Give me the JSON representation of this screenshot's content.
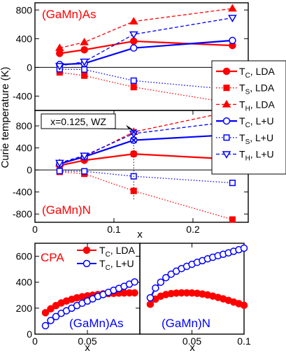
{
  "shared": {
    "ylabel": "Curie temperature (K)",
    "xlabel": "x"
  },
  "legend_top": [
    {
      "label_main": "T",
      "label_sub": "C",
      "label_rest": ", LDA",
      "color": "#ff0000",
      "marker": "circle-filled",
      "dash": "solid"
    },
    {
      "label_main": "T",
      "label_sub": "S",
      "label_rest": ", LDA",
      "color": "#ff0000",
      "marker": "square-filled",
      "dash": "dotted"
    },
    {
      "label_main": "T",
      "label_sub": "H",
      "label_rest": ", LDA",
      "color": "#ff0000",
      "marker": "triangle-filled",
      "dash": "dashed"
    },
    {
      "label_main": "T",
      "label_sub": "C",
      "label_rest": ", L+U",
      "color": "#0000ff",
      "marker": "circle-open",
      "dash": "solid"
    },
    {
      "label_main": "T",
      "label_sub": "S",
      "label_rest": ", L+U",
      "color": "#0000ff",
      "marker": "square-open",
      "dash": "dotted"
    },
    {
      "label_main": "T",
      "label_sub": "H",
      "label_rest": ", L+U",
      "color": "#0000ff",
      "marker": "triangle-open",
      "dash": "dashed"
    }
  ],
  "chart_data": [
    {
      "type": "line",
      "panel": "top",
      "title": "(GaMn)As",
      "xlim": [
        0,
        0.27
      ],
      "ylim": [
        -600,
        900
      ],
      "yticks": [
        -400,
        0,
        400,
        800
      ],
      "xticks": [],
      "zero_line": true,
      "series": [
        {
          "key": "TC_LDA",
          "color": "#ff0000",
          "marker": "circle-filled",
          "dash": "solid",
          "x": [
            0.03125,
            0.0625,
            0.125,
            0.25
          ],
          "y": [
            195,
            245,
            365,
            305
          ]
        },
        {
          "key": "TS_LDA",
          "color": "#ff0000",
          "marker": "square-filled",
          "dash": "dotted",
          "x": [
            0.03125,
            0.0625,
            0.125,
            0.25
          ],
          "y": [
            -70,
            -115,
            -275,
            -500
          ]
        },
        {
          "key": "TH_LDA",
          "color": "#ff0000",
          "marker": "triangle-filled",
          "dash": "dashed",
          "x": [
            0.03125,
            0.0625,
            0.125,
            0.25
          ],
          "y": [
            270,
            350,
            640,
            820
          ]
        },
        {
          "key": "TC_LU",
          "color": "#0000ff",
          "marker": "circle-open",
          "dash": "solid",
          "x": [
            0.03125,
            0.0625,
            0.125,
            0.25
          ],
          "y": [
            40,
            55,
            270,
            375
          ]
        },
        {
          "key": "TS_LU",
          "color": "#0000ff",
          "marker": "square-open",
          "dash": "dotted",
          "x": [
            0.03125,
            0.0625,
            0.125,
            0.25
          ],
          "y": [
            -25,
            -30,
            -185,
            -310
          ]
        },
        {
          "key": "TH_LU",
          "color": "#0000ff",
          "marker": "triangle-open",
          "dash": "dashed",
          "x": [
            0.03125,
            0.0625,
            0.125,
            0.25
          ],
          "y": [
            20,
            80,
            460,
            690
          ]
        }
      ]
    },
    {
      "type": "line",
      "panel": "middle",
      "title": "(GaMn)N",
      "xlim": [
        0,
        0.27
      ],
      "ylim": [
        -950,
        1080
      ],
      "yticks": [
        -800,
        -400,
        0,
        400,
        800
      ],
      "xticks": [
        0,
        0.1,
        0.2
      ],
      "zero_line": true,
      "annotation": "x=0.125, WZ",
      "wz_x": 0.125,
      "series": [
        {
          "key": "TC_LDA",
          "color": "#ff0000",
          "marker": "circle-filled",
          "dash": "solid",
          "x": [
            0.03125,
            0.0625,
            0.125,
            0.25
          ],
          "y": [
            80,
            175,
            290,
            195
          ]
        },
        {
          "key": "TS_LDA",
          "color": "#ff0000",
          "marker": "square-filled",
          "dash": "dotted",
          "x": [
            0.03125,
            0.0625,
            0.125,
            0.25
          ],
          "y": [
            -35,
            -70,
            -380,
            -900
          ]
        },
        {
          "key": "TH_LDA",
          "color": "#ff0000",
          "marker": "triangle-filled",
          "dash": "dashed",
          "x": [
            0.03125,
            0.0625,
            0.125,
            0.25
          ],
          "y": [
            120,
            240,
            690,
            1070
          ]
        },
        {
          "key": "TC_LU",
          "color": "#0000ff",
          "marker": "circle-open",
          "dash": "solid",
          "x": [
            0.03125,
            0.0625,
            0.125,
            0.25
          ],
          "y": [
            110,
            240,
            540,
            640
          ]
        },
        {
          "key": "TS_LU",
          "color": "#0000ff",
          "marker": "square-open",
          "dash": "dotted",
          "x": [
            0.03125,
            0.0625,
            0.125,
            0.25
          ],
          "y": [
            -20,
            -25,
            -115,
            -235
          ]
        },
        {
          "key": "TH_LU",
          "color": "#0000ff",
          "marker": "triangle-open",
          "dash": "dashed",
          "x": [
            0.03125,
            0.0625,
            0.125,
            0.25
          ],
          "y": [
            130,
            260,
            660,
            880
          ]
        }
      ],
      "wz_points": [
        {
          "color": "#ff0000",
          "y": -380
        },
        {
          "color": "#ff0000",
          "y": 290
        },
        {
          "color": "#0000ff",
          "y": 540
        },
        {
          "color": "#0000ff",
          "y": 690
        }
      ]
    },
    {
      "type": "line",
      "panel": "bottom-left",
      "title": "(GaMn)As",
      "corner_label": "CPA",
      "xlim": [
        0,
        0.1
      ],
      "ylim": [
        0,
        700
      ],
      "yticks": [
        0,
        200,
        400,
        600
      ],
      "xticks": [
        0,
        0.05
      ],
      "legend": [
        {
          "label_main": "T",
          "label_sub": "C",
          "label_rest": ", LDA",
          "color": "#ff0000",
          "marker": "circle-filled"
        },
        {
          "label_main": "T",
          "label_sub": "C",
          "label_rest": ", L+U",
          "color": "#0000ff",
          "marker": "circle-open"
        }
      ],
      "series": [
        {
          "key": "TC_LDA",
          "color": "#ff0000",
          "marker": "circle-filled",
          "dash": "solid",
          "x": [
            0.01,
            0.015,
            0.02,
            0.025,
            0.03,
            0.035,
            0.04,
            0.045,
            0.05,
            0.055,
            0.06,
            0.065,
            0.07,
            0.075,
            0.08,
            0.085,
            0.09,
            0.095
          ],
          "y": [
            165,
            195,
            220,
            240,
            255,
            268,
            280,
            288,
            295,
            300,
            305,
            310,
            312,
            314,
            316,
            317,
            318,
            318
          ]
        },
        {
          "key": "TC_LU",
          "color": "#0000ff",
          "marker": "circle-open",
          "dash": "solid",
          "x": [
            0.01,
            0.015,
            0.02,
            0.025,
            0.03,
            0.035,
            0.04,
            0.045,
            0.05,
            0.055,
            0.06,
            0.065,
            0.07,
            0.075,
            0.08,
            0.085,
            0.09,
            0.095
          ],
          "y": [
            65,
            105,
            135,
            160,
            180,
            200,
            220,
            238,
            255,
            272,
            290,
            305,
            322,
            338,
            352,
            368,
            385,
            402
          ]
        }
      ]
    },
    {
      "type": "line",
      "panel": "bottom-right",
      "title": "(GaMn)N",
      "xlim": [
        0,
        0.1
      ],
      "ylim": [
        0,
        700
      ],
      "yticks": [],
      "xticks": [
        0.05,
        0.1
      ],
      "series": [
        {
          "key": "TC_LDA",
          "color": "#ff0000",
          "marker": "circle-filled",
          "dash": "solid",
          "x": [
            0.01,
            0.015,
            0.02,
            0.025,
            0.03,
            0.035,
            0.04,
            0.045,
            0.05,
            0.055,
            0.06,
            0.065,
            0.07,
            0.075,
            0.08,
            0.085,
            0.09,
            0.095,
            0.1
          ],
          "y": [
            230,
            270,
            292,
            305,
            312,
            316,
            318,
            318,
            317,
            314,
            309,
            302,
            293,
            283,
            272,
            260,
            247,
            235,
            222
          ]
        },
        {
          "key": "TC_LU",
          "color": "#0000ff",
          "marker": "circle-open",
          "dash": "solid",
          "x": [
            0.01,
            0.015,
            0.02,
            0.025,
            0.03,
            0.035,
            0.04,
            0.045,
            0.05,
            0.055,
            0.06,
            0.065,
            0.07,
            0.075,
            0.08,
            0.085,
            0.09,
            0.095,
            0.1
          ],
          "y": [
            280,
            355,
            400,
            435,
            462,
            485,
            505,
            522,
            538,
            553,
            566,
            580,
            592,
            604,
            615,
            626,
            638,
            650,
            662
          ]
        }
      ]
    }
  ]
}
